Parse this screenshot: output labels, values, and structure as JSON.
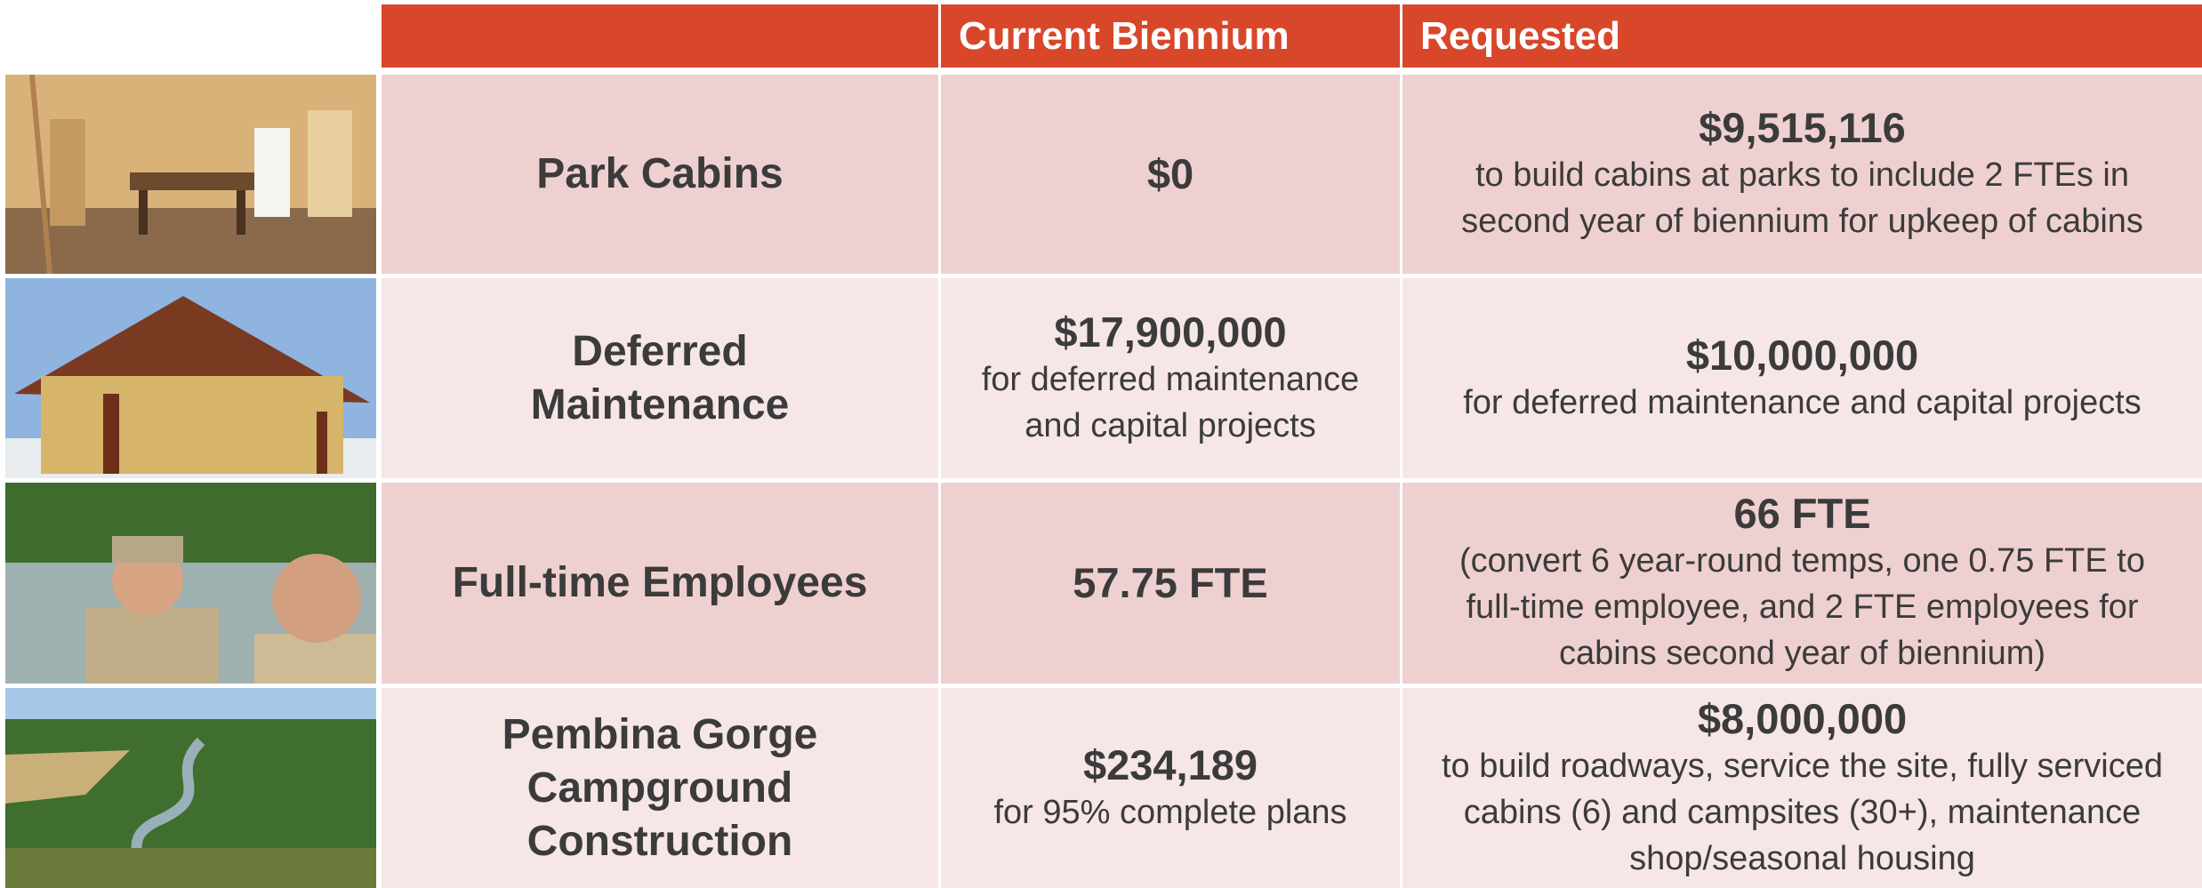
{
  "table": {
    "headers": [
      "Current Biennium",
      "Requested"
    ],
    "rows": [
      {
        "label": "Park Cabins",
        "current": {
          "amount": "$0"
        },
        "requested": {
          "amount": "$9,515,116",
          "note": "to build cabins at parks to include 2 FTEs in second year of biennium for upkeep of cabins"
        }
      },
      {
        "label": "Deferred Maintenance",
        "current": {
          "amount": "$17,900,000",
          "note": "for deferred maintenance and capital projects"
        },
        "requested": {
          "amount": "$10,000,000",
          "note": "for deferred maintenance and capital projects"
        }
      },
      {
        "label": "Full-time Employees",
        "current": {
          "amount": "57.75 FTE"
        },
        "requested": {
          "amount": "66 FTE",
          "note": "(convert 6 year-round temps, one 0.75 FTE to full-time employee, and 2 FTE employees for cabins second year of biennium)"
        }
      },
      {
        "label": "Pembina Gorge Campground Construction",
        "current": {
          "amount": "$234,189",
          "note": "for 95% complete plans"
        },
        "requested": {
          "amount": "$8,000,000",
          "note": "to build roadways, service the site, fully serviced cabins (6) and campsites (30+), maintenance shop/seasonal housing"
        }
      }
    ]
  }
}
